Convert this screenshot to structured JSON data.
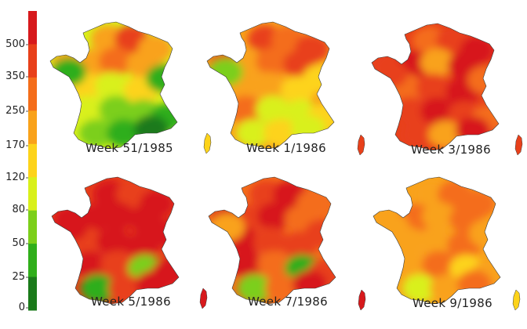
{
  "legend": {
    "ticks": [
      "500",
      "350",
      "250",
      "170",
      "120",
      "80",
      "50",
      "25",
      "0"
    ],
    "colors": [
      "#d7191c",
      "#e8401a",
      "#f46d1a",
      "#f9a21a",
      "#fdd31a",
      "#d9f01a",
      "#7ccf1a",
      "#2fae1a",
      "#1a7a1a"
    ]
  },
  "maps": [
    {
      "title": "Week 51/1985",
      "levels": [
        3,
        1,
        3,
        3,
        3,
        2,
        3,
        4,
        5,
        4,
        5,
        6,
        6,
        7,
        6,
        7,
        8,
        7,
        7
      ],
      "corsica": 4
    },
    {
      "title": "Week 1/1986",
      "levels": [
        1,
        2,
        1,
        1,
        3,
        2,
        1,
        3,
        3,
        4,
        2,
        5,
        5,
        4,
        5,
        4,
        5,
        6,
        4
      ],
      "corsica": 1
    },
    {
      "title": "Week 3/1986",
      "levels": [
        2,
        1,
        0,
        1,
        0,
        3,
        0,
        2,
        1,
        0,
        1,
        0,
        1,
        2,
        1,
        3,
        0,
        1,
        2
      ],
      "corsica": 1
    },
    {
      "title": "Week 5/1986",
      "levels": [
        0,
        1,
        0,
        0,
        0,
        0,
        0,
        1,
        0,
        0,
        0,
        1,
        6,
        0,
        7,
        1,
        0,
        0,
        0
      ],
      "corsica": 0
    },
    {
      "title": "Week 7/1986",
      "levels": [
        1,
        0,
        2,
        0,
        1,
        0,
        2,
        0,
        1,
        1,
        0,
        2,
        7,
        1,
        6,
        2,
        0,
        3,
        1
      ],
      "corsica": 0
    },
    {
      "title": "Week 9/1986",
      "levels": [
        3,
        2,
        2,
        3,
        2,
        3,
        2,
        3,
        3,
        2,
        3,
        2,
        4,
        3,
        5,
        3,
        2,
        3,
        3
      ],
      "corsica": 4
    }
  ]
}
